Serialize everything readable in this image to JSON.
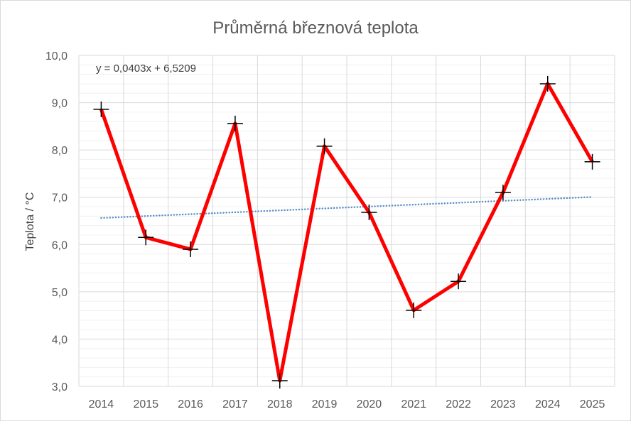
{
  "chart_data": {
    "type": "line",
    "title": "Průměrná březnová teplota",
    "ylabel": "Teplota / °C",
    "xlabel": "",
    "categories": [
      "2014",
      "2015",
      "2016",
      "2017",
      "2018",
      "2019",
      "2020",
      "2021",
      "2022",
      "2023",
      "2024",
      "2025"
    ],
    "series": [
      {
        "values": [
          8.86,
          6.15,
          5.9,
          8.56,
          3.12,
          8.08,
          6.68,
          4.61,
          5.22,
          7.1,
          9.4,
          7.75
        ],
        "color": "#ff0000",
        "marker": "plus-cross"
      }
    ],
    "ylim": [
      3.0,
      10.0
    ],
    "y_ticks": [
      "3,0",
      "4,0",
      "5,0",
      "6,0",
      "7,0",
      "8,0",
      "9,0",
      "10,0"
    ],
    "trendline": {
      "equation": "y = 0,0403x + 6,5209",
      "slope": 0.0403,
      "intercept": 6.5209,
      "style": "dotted",
      "color": "#5b8fc7"
    },
    "grid": {
      "major": true,
      "minor": true,
      "vertical": true
    },
    "legend": "none"
  }
}
